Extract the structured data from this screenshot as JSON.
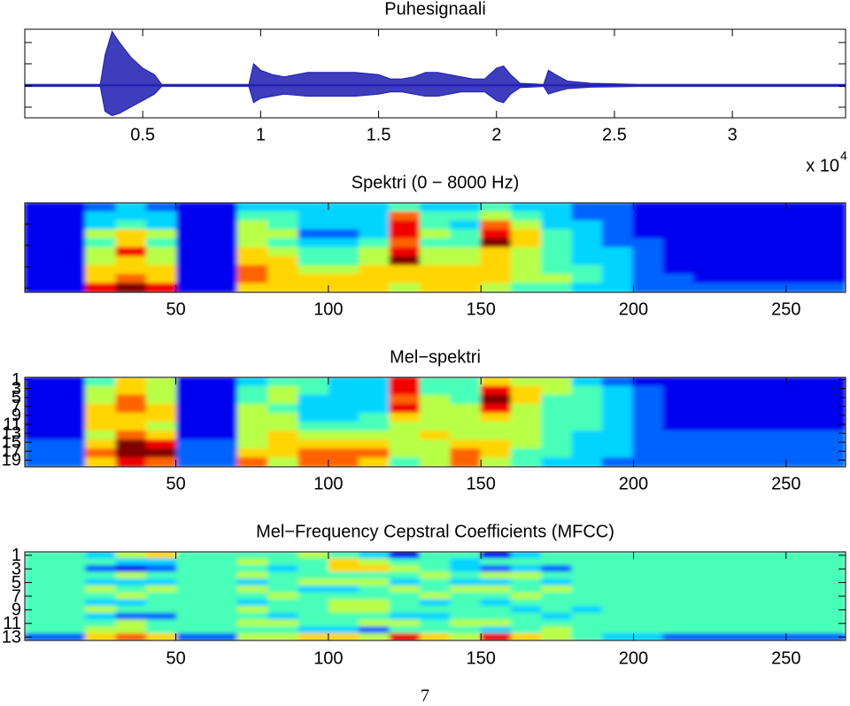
{
  "chart_data": [
    {
      "type": "area",
      "title": "Puhesignaali",
      "x": [
        0,
        0.32,
        0.34,
        0.37,
        0.4,
        0.45,
        0.5,
        0.55,
        0.58,
        0.95,
        0.97,
        1.0,
        1.05,
        1.1,
        1.2,
        1.3,
        1.4,
        1.5,
        1.55,
        1.6,
        1.65,
        1.7,
        1.75,
        1.8,
        1.85,
        1.9,
        1.95,
        2.0,
        2.03,
        2.06,
        2.1,
        2.2,
        2.22,
        2.25,
        2.3,
        2.4,
        2.6,
        3.48
      ],
      "series": [
        {
          "color": "#1c1cb0",
          "values": [
            0.05,
            0.05,
            1.4,
            2.5,
            2.0,
            1.3,
            0.8,
            0.5,
            0.05,
            0.05,
            1.0,
            0.7,
            0.5,
            0.4,
            0.6,
            0.6,
            0.6,
            0.5,
            0.3,
            0.3,
            0.4,
            0.6,
            0.6,
            0.5,
            0.4,
            0.3,
            0.3,
            0.8,
            0.9,
            0.5,
            0.1,
            0.05,
            0.7,
            0.5,
            0.2,
            0.1,
            0.05,
            0.05
          ]
        },
        {
          "color": "#1c1cb0",
          "values": [
            -0.05,
            -0.05,
            -1.2,
            -1.4,
            -1.3,
            -1.0,
            -0.7,
            -0.4,
            -0.05,
            -0.05,
            -0.8,
            -0.6,
            -0.5,
            -0.4,
            -0.5,
            -0.5,
            -0.5,
            -0.4,
            -0.3,
            -0.3,
            -0.4,
            -0.5,
            -0.5,
            -0.4,
            -0.3,
            -0.3,
            -0.3,
            -0.7,
            -0.8,
            -0.4,
            -0.1,
            -0.05,
            -0.4,
            -0.3,
            -0.15,
            -0.08,
            -0.05,
            -0.05
          ]
        }
      ],
      "xlim": [
        0,
        3.48
      ],
      "xticks": [
        0.5,
        1,
        1.5,
        2,
        2.5,
        3
      ],
      "ylim": [
        -1.5,
        2.6
      ],
      "offset_text": "x 10",
      "offset_exponent": 4
    },
    {
      "type": "heatmap",
      "title": "Spektri (0 − 8000 Hz)",
      "colormap": "jet",
      "clim": [
        0,
        9
      ],
      "xlim": [
        0.5,
        269.5
      ],
      "xticks": [
        50,
        100,
        150,
        200,
        250
      ],
      "z": [
        [
          1,
          1,
          2,
          3,
          2,
          1,
          1,
          3,
          3,
          3,
          3,
          3,
          4,
          3,
          3,
          4,
          3,
          3,
          2,
          2,
          1,
          1,
          1,
          1,
          1,
          1,
          1
        ],
        [
          1,
          1,
          3,
          3,
          3,
          1,
          1,
          4,
          4,
          3,
          3,
          3,
          7,
          4,
          4,
          5,
          4,
          3,
          2,
          2,
          1,
          1,
          1,
          1,
          1,
          1,
          1
        ],
        [
          1,
          1,
          3,
          4,
          3,
          1,
          1,
          5,
          4,
          3,
          3,
          3,
          8,
          4,
          3,
          7,
          5,
          3,
          3,
          2,
          1,
          1,
          1,
          1,
          1,
          1,
          1
        ],
        [
          1,
          1,
          5,
          6,
          5,
          1,
          1,
          5,
          5,
          2,
          2,
          3,
          8,
          5,
          4,
          8,
          6,
          4,
          3,
          2,
          1,
          1,
          1,
          1,
          1,
          1,
          1
        ],
        [
          1,
          1,
          4,
          6,
          4,
          1,
          1,
          5,
          4,
          3,
          3,
          4,
          7,
          4,
          4,
          9,
          6,
          4,
          3,
          2,
          2,
          1,
          1,
          1,
          1,
          1,
          1
        ],
        [
          1,
          1,
          5,
          8,
          5,
          1,
          1,
          6,
          5,
          4,
          4,
          5,
          8,
          5,
          5,
          6,
          5,
          4,
          3,
          3,
          2,
          1,
          1,
          1,
          1,
          1,
          1
        ],
        [
          1,
          1,
          5,
          6,
          5,
          1,
          1,
          6,
          6,
          4,
          4,
          5,
          9,
          5,
          5,
          6,
          5,
          4,
          3,
          3,
          2,
          1,
          1,
          1,
          1,
          1,
          1
        ],
        [
          1,
          1,
          6,
          6,
          6,
          1,
          1,
          7,
          6,
          5,
          5,
          6,
          6,
          6,
          6,
          6,
          5,
          4,
          4,
          3,
          2,
          1,
          1,
          1,
          1,
          1,
          1
        ],
        [
          1,
          1,
          6,
          7,
          6,
          1,
          1,
          7,
          6,
          6,
          6,
          6,
          6,
          6,
          6,
          6,
          5,
          5,
          4,
          3,
          2,
          2,
          1,
          1,
          1,
          1,
          1
        ],
        [
          1,
          1,
          8,
          9,
          8,
          1,
          1,
          6,
          6,
          6,
          6,
          6,
          5,
          6,
          6,
          5,
          4,
          4,
          3,
          3,
          2,
          2,
          2,
          2,
          2,
          2,
          2
        ]
      ]
    },
    {
      "type": "heatmap",
      "title": "Mel−spektri",
      "colormap": "jet",
      "clim": [
        0,
        9
      ],
      "xlim": [
        0.5,
        269.5
      ],
      "xticks": [
        50,
        100,
        150,
        200,
        250
      ],
      "ylim": [
        0.5,
        20.5
      ],
      "yreverse": true,
      "yticks": [
        1,
        3,
        5,
        7,
        9,
        11,
        13,
        15,
        17,
        19
      ],
      "z": [
        [
          1,
          1,
          4,
          6,
          5,
          1,
          1,
          3,
          4,
          4,
          3,
          3,
          8,
          4,
          4,
          6,
          5,
          5,
          3,
          2,
          1,
          1,
          1,
          1,
          1,
          1,
          1
        ],
        [
          1,
          1,
          4,
          6,
          5,
          1,
          1,
          3,
          4,
          4,
          3,
          3,
          8,
          4,
          4,
          6,
          5,
          5,
          3,
          2,
          1,
          1,
          1,
          1,
          1,
          1,
          1
        ],
        [
          1,
          1,
          5,
          6,
          5,
          1,
          1,
          4,
          5,
          4,
          3,
          3,
          8,
          4,
          4,
          8,
          6,
          5,
          4,
          3,
          2,
          1,
          1,
          1,
          1,
          1,
          1
        ],
        [
          1,
          1,
          5,
          6,
          5,
          1,
          1,
          4,
          5,
          4,
          3,
          3,
          8,
          4,
          4,
          8,
          6,
          5,
          4,
          3,
          2,
          1,
          1,
          1,
          1,
          1,
          1
        ],
        [
          1,
          1,
          5,
          7,
          5,
          1,
          1,
          4,
          5,
          3,
          3,
          3,
          7,
          5,
          4,
          9,
          6,
          4,
          4,
          3,
          2,
          1,
          1,
          1,
          1,
          1,
          1
        ],
        [
          1,
          1,
          5,
          7,
          5,
          1,
          1,
          4,
          5,
          3,
          3,
          3,
          7,
          5,
          4,
          9,
          6,
          4,
          4,
          3,
          2,
          1,
          1,
          1,
          1,
          1,
          1
        ],
        [
          1,
          1,
          6,
          7,
          6,
          1,
          1,
          5,
          4,
          3,
          3,
          3,
          8,
          5,
          5,
          8,
          5,
          4,
          4,
          3,
          2,
          1,
          1,
          1,
          1,
          1,
          1
        ],
        [
          1,
          1,
          6,
          7,
          6,
          1,
          1,
          5,
          4,
          3,
          3,
          3,
          8,
          5,
          5,
          8,
          5,
          4,
          4,
          3,
          2,
          1,
          1,
          1,
          1,
          1,
          1
        ],
        [
          1,
          1,
          6,
          6,
          6,
          1,
          1,
          5,
          5,
          3,
          3,
          4,
          6,
          5,
          5,
          6,
          5,
          4,
          4,
          3,
          2,
          1,
          1,
          1,
          1,
          1,
          1
        ],
        [
          1,
          1,
          6,
          6,
          6,
          1,
          1,
          5,
          5,
          3,
          3,
          4,
          6,
          5,
          5,
          6,
          5,
          4,
          4,
          3,
          2,
          1,
          1,
          1,
          1,
          1,
          1
        ],
        [
          1,
          1,
          6,
          6,
          5,
          1,
          1,
          5,
          5,
          4,
          4,
          4,
          5,
          5,
          5,
          5,
          5,
          4,
          4,
          3,
          2,
          1,
          1,
          1,
          1,
          1,
          1
        ],
        [
          1,
          1,
          6,
          6,
          5,
          1,
          1,
          5,
          5,
          4,
          4,
          4,
          5,
          5,
          5,
          5,
          5,
          4,
          4,
          3,
          2,
          1,
          1,
          1,
          1,
          1,
          1
        ],
        [
          1,
          1,
          5,
          7,
          6,
          1,
          1,
          5,
          6,
          5,
          5,
          5,
          5,
          6,
          5,
          5,
          5,
          4,
          3,
          3,
          2,
          2,
          2,
          2,
          2,
          2,
          2
        ],
        [
          1,
          1,
          5,
          7,
          6,
          1,
          1,
          5,
          6,
          5,
          5,
          5,
          5,
          6,
          5,
          5,
          5,
          4,
          3,
          3,
          2,
          2,
          2,
          2,
          2,
          2,
          2
        ],
        [
          2,
          2,
          6,
          9,
          8,
          2,
          2,
          5,
          6,
          6,
          6,
          6,
          5,
          5,
          6,
          6,
          5,
          4,
          3,
          3,
          2,
          2,
          2,
          2,
          2,
          2,
          2
        ],
        [
          2,
          2,
          6,
          9,
          8,
          2,
          2,
          5,
          6,
          6,
          6,
          6,
          5,
          5,
          6,
          6,
          5,
          4,
          3,
          3,
          2,
          2,
          2,
          2,
          2,
          2,
          2
        ],
        [
          2,
          2,
          7,
          9,
          9,
          2,
          2,
          6,
          6,
          7,
          7,
          7,
          5,
          5,
          7,
          6,
          4,
          4,
          3,
          3,
          2,
          2,
          2,
          2,
          2,
          2,
          2
        ],
        [
          2,
          2,
          7,
          9,
          9,
          2,
          2,
          6,
          6,
          7,
          7,
          7,
          5,
          5,
          7,
          6,
          4,
          4,
          3,
          3,
          2,
          2,
          2,
          2,
          2,
          2,
          2
        ],
        [
          2,
          2,
          6,
          8,
          7,
          2,
          2,
          7,
          5,
          7,
          7,
          6,
          4,
          5,
          7,
          5,
          4,
          3,
          3,
          2,
          2,
          2,
          2,
          2,
          2,
          2,
          2
        ],
        [
          2,
          2,
          6,
          8,
          7,
          2,
          2,
          7,
          5,
          7,
          7,
          6,
          4,
          5,
          7,
          5,
          4,
          3,
          3,
          2,
          2,
          2,
          2,
          2,
          2,
          2,
          2
        ]
      ]
    },
    {
      "type": "heatmap",
      "title": "Mel−Frequency Cepstral Coefficients (MFCC)",
      "colormap": "jet",
      "clim": [
        0,
        9
      ],
      "xlim": [
        0.5,
        269.5
      ],
      "xticks": [
        50,
        100,
        150,
        200,
        250
      ],
      "ylim": [
        0.5,
        13.5
      ],
      "yreverse": true,
      "yticks": [
        1,
        3,
        5,
        7,
        9,
        11,
        13
      ],
      "z": [
        [
          4,
          4,
          3,
          5,
          6,
          4,
          4,
          4,
          4,
          5,
          4,
          3,
          1,
          4,
          4,
          1,
          3,
          4,
          4,
          4,
          4,
          4,
          4,
          4,
          4,
          4,
          4
        ],
        [
          4,
          4,
          4,
          3,
          3,
          4,
          4,
          5,
          4,
          4,
          6,
          5,
          4,
          4,
          3,
          4,
          4,
          4,
          4,
          4,
          4,
          4,
          4,
          4,
          4,
          4,
          4
        ],
        [
          4,
          4,
          2,
          1,
          2,
          4,
          4,
          4,
          3,
          4,
          6,
          6,
          5,
          4,
          3,
          2,
          3,
          2,
          4,
          4,
          4,
          4,
          4,
          4,
          4,
          4,
          4
        ],
        [
          4,
          4,
          4,
          5,
          4,
          4,
          4,
          5,
          4,
          4,
          4,
          4,
          4,
          5,
          4,
          5,
          5,
          4,
          4,
          4,
          4,
          4,
          4,
          4,
          4,
          4,
          4
        ],
        [
          4,
          4,
          3,
          3,
          3,
          4,
          4,
          3,
          4,
          5,
          5,
          5,
          3,
          4,
          3,
          3,
          4,
          3,
          4,
          4,
          4,
          4,
          4,
          4,
          4,
          4,
          4
        ],
        [
          4,
          4,
          5,
          4,
          5,
          4,
          4,
          5,
          4,
          3,
          3,
          4,
          5,
          4,
          5,
          5,
          4,
          5,
          4,
          4,
          4,
          4,
          4,
          4,
          4,
          4,
          4
        ],
        [
          4,
          4,
          4,
          5,
          4,
          4,
          4,
          4,
          5,
          4,
          4,
          4,
          4,
          5,
          4,
          4,
          5,
          4,
          4,
          4,
          4,
          4,
          4,
          4,
          4,
          4,
          4
        ],
        [
          4,
          4,
          3,
          3,
          4,
          4,
          4,
          3,
          4,
          4,
          5,
          5,
          4,
          3,
          4,
          3,
          4,
          4,
          4,
          4,
          4,
          4,
          4,
          4,
          4,
          4,
          4
        ],
        [
          4,
          4,
          5,
          4,
          4,
          4,
          4,
          5,
          4,
          4,
          5,
          5,
          4,
          4,
          4,
          4,
          3,
          4,
          3,
          4,
          4,
          4,
          4,
          4,
          4,
          4,
          4
        ],
        [
          4,
          4,
          3,
          2,
          2,
          4,
          4,
          4,
          3,
          4,
          4,
          4,
          3,
          3,
          4,
          4,
          4,
          3,
          4,
          4,
          4,
          4,
          4,
          4,
          4,
          4,
          4
        ],
        [
          4,
          4,
          4,
          5,
          4,
          4,
          4,
          5,
          5,
          4,
          4,
          5,
          5,
          4,
          5,
          5,
          4,
          4,
          4,
          4,
          4,
          4,
          4,
          4,
          4,
          4,
          4
        ],
        [
          4,
          4,
          5,
          5,
          4,
          4,
          4,
          4,
          4,
          3,
          3,
          2,
          4,
          4,
          4,
          3,
          4,
          5,
          4,
          4,
          4,
          4,
          4,
          4,
          4,
          4,
          4
        ],
        [
          2,
          2,
          6,
          7,
          6,
          2,
          2,
          5,
          5,
          6,
          6,
          5,
          8,
          6,
          5,
          8,
          6,
          5,
          4,
          3,
          3,
          2,
          2,
          2,
          2,
          2,
          2
        ]
      ]
    }
  ],
  "page_number": 7
}
